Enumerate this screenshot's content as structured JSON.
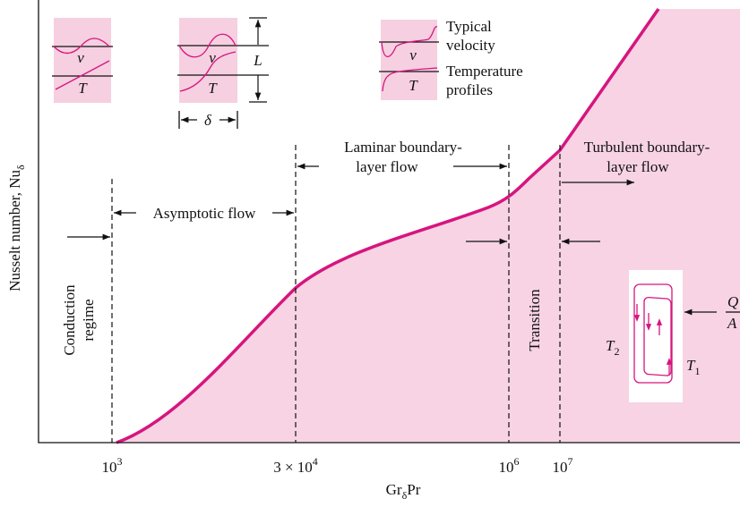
{
  "y_axis_label": {
    "text": "Nusselt number, Nu",
    "sub": "δ"
  },
  "x_axis_label": {
    "text": "Gr",
    "sub": "δ",
    "after": "Pr"
  },
  "x_ticks": [
    {
      "base": "10",
      "exp": "3"
    },
    {
      "base": "3 × 10",
      "exp": "4"
    },
    {
      "base": "10",
      "exp": "6"
    },
    {
      "base": "10",
      "exp": "7"
    }
  ],
  "regions": {
    "conduction": [
      "Conduction",
      "regime"
    ],
    "asymptotic": "Asymptotic flow",
    "laminar": [
      "Laminar boundary-",
      "layer flow"
    ],
    "transition": "Transition",
    "turbulent": [
      "Turbulent boundary-",
      "layer flow"
    ]
  },
  "profiles": {
    "legend": [
      "Typical",
      "velocity",
      "Temperature",
      "profiles"
    ],
    "velocity_symbol": "v",
    "temperature_symbol": "T",
    "height_symbol": "L",
    "thickness_symbol": "δ"
  },
  "cavity": {
    "hot": {
      "text": "T",
      "sub": "2"
    },
    "cold": {
      "text": "T",
      "sub": "1"
    },
    "flux_num": "Q",
    "flux_den": "A"
  }
}
